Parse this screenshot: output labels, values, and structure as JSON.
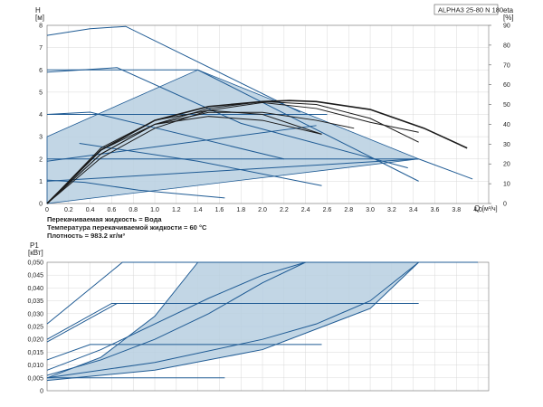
{
  "chart_data": [
    {
      "type": "line",
      "title": "ALPHA3 25-80 N 180",
      "y_axis_left": {
        "label": "H",
        "unit": "[м]",
        "range": [
          0,
          8
        ],
        "ticks": [
          "0",
          "1",
          "2",
          "3",
          "4",
          "5",
          "6",
          "7",
          "8"
        ]
      },
      "y_axis_right": {
        "label": "eta",
        "unit": "[%]",
        "range": [
          0,
          90
        ],
        "ticks": [
          "0",
          "10",
          "20",
          "30",
          "40",
          "50",
          "60",
          "70",
          "80",
          "90"
        ]
      },
      "x_axis": {
        "label": "Q",
        "unit": "[м³/ч]",
        "range": [
          0,
          4.1
        ],
        "ticks": [
          "0",
          "0.2",
          "0.4",
          "0.6",
          "0.8",
          "1.0",
          "1.2",
          "1.4",
          "1.6",
          "1.8",
          "2.0",
          "2.2",
          "2.4",
          "2.6",
          "2.8",
          "3.0",
          "3.2",
          "3.4",
          "3.6",
          "3.8",
          "4.0"
        ]
      },
      "grid": true,
      "notes": [
        "Перекачиваемая жидкость = Вода",
        "Температура перекачиваемой жидкости = 60 °C",
        "Плотность = 983.2 кг/м³"
      ],
      "proportional_region": {
        "x": [
          0,
          1.4,
          3.45,
          0
        ],
        "y": [
          3.0,
          6.0,
          2.0,
          0.0
        ]
      },
      "head_series": [
        {
          "x": [
            0,
            0.4,
            0.73,
            2.35
          ],
          "y": [
            7.55,
            7.85,
            7.95,
            4.1
          ]
        },
        {
          "x": [
            0,
            0.65,
            1.8,
            3.35
          ],
          "y": [
            5.9,
            6.1,
            3.6,
            1.6
          ]
        },
        {
          "x": [
            0,
            1.4
          ],
          "y": [
            6.0,
            6.0
          ]
        },
        {
          "x": [
            0,
            0.4,
            2.2
          ],
          "y": [
            4.0,
            4.1,
            2.0
          ]
        },
        {
          "x": [
            0,
            0.35,
            0.85,
            1.65
          ],
          "y": [
            1.05,
            0.95,
            0.6,
            0.25
          ]
        },
        {
          "x": [
            0,
            2.6
          ],
          "y": [
            4.0,
            4.0
          ]
        },
        {
          "x": [
            0,
            3.45
          ],
          "y": [
            1.0,
            2.0
          ]
        },
        {
          "x": [
            0,
            2.5
          ],
          "y": [
            1.9,
            3.5
          ]
        },
        {
          "x": [
            0,
            3.45
          ],
          "y": [
            2.0,
            2.0
          ]
        },
        {
          "x": [
            0.3,
            1.4,
            2.55
          ],
          "y": [
            2.7,
            1.9,
            0.8
          ]
        },
        {
          "x": [
            3.45,
            3.95
          ],
          "y": [
            2.0,
            1.1
          ]
        },
        {
          "x": [
            1.4,
            3.45
          ],
          "y": [
            6.0,
            1.0
          ]
        }
      ],
      "eta_series": [
        {
          "x": [
            0,
            0.5,
            1.0,
            1.5,
            2.0,
            2.25,
            2.5,
            3.0,
            3.5,
            3.9
          ],
          "y": [
            0,
            27,
            42,
            49,
            51.5,
            52,
            51.5,
            47.5,
            38,
            28
          ]
        },
        {
          "x": [
            0,
            0.5,
            1.0,
            1.5,
            2.0,
            2.5,
            3.0,
            3.45
          ],
          "y": [
            0,
            25,
            40,
            48,
            51.5,
            50,
            43,
            31
          ]
        },
        {
          "x": [
            0,
            0.5,
            1.0,
            1.5,
            2.0,
            2.5,
            3.0,
            3.45
          ],
          "y": [
            0,
            23,
            38,
            47,
            51,
            48,
            41,
            36
          ]
        },
        {
          "x": [
            0,
            0.5,
            1.0,
            1.5,
            2.0,
            2.5,
            2.85
          ],
          "y": [
            0,
            25,
            40,
            46,
            46,
            42,
            38
          ]
        },
        {
          "x": [
            0,
            0.5,
            1.0,
            1.5,
            2.0,
            2.55
          ],
          "y": [
            0,
            28,
            42,
            47,
            45,
            35
          ]
        },
        {
          "x": [
            0,
            0.5,
            1.0,
            1.5,
            2.0,
            2.55
          ],
          "y": [
            0,
            27,
            40,
            44,
            42,
            35
          ]
        }
      ]
    },
    {
      "type": "line",
      "y_axis": {
        "label": "P1",
        "unit": "[кВт]",
        "range": [
          0,
          0.05
        ],
        "ticks": [
          "0",
          "0,005",
          "0,010",
          "0,015",
          "0,020",
          "0,025",
          "0,030",
          "0,035",
          "0,040",
          "0,045",
          "0,050"
        ]
      },
      "x_range": [
        0,
        4.1
      ],
      "grid": true,
      "proportional_region": {
        "x": [
          0,
          1.4,
          3.45,
          3.45,
          1.4,
          0
        ],
        "y": [
          0.006,
          0.05,
          0.05,
          0.05,
          0.05,
          0.006
        ]
      },
      "power_series": [
        {
          "x": [
            0,
            0.7,
            0.75,
            4.0
          ],
          "y": [
            0.026,
            0.05,
            0.05,
            0.05
          ]
        },
        {
          "x": [
            0,
            0.6,
            3.45
          ],
          "y": [
            0.02,
            0.034,
            0.034
          ]
        },
        {
          "x": [
            0,
            0.65,
            2.55
          ],
          "y": [
            0.019,
            0.034,
            0.034
          ]
        },
        {
          "x": [
            0,
            0.4,
            2.55
          ],
          "y": [
            0.012,
            0.018,
            0.018
          ]
        },
        {
          "x": [
            0,
            0.35,
            1.65
          ],
          "y": [
            0.005,
            0.005,
            0.005
          ]
        },
        {
          "x": [
            0,
            0.5,
            1.0,
            1.4
          ],
          "y": [
            0.005,
            0.013,
            0.029,
            0.05
          ]
        },
        {
          "x": [
            0,
            0.5,
            1.0,
            1.5,
            2.0,
            2.4
          ],
          "y": [
            0.006,
            0.012,
            0.02,
            0.03,
            0.042,
            0.05
          ]
        },
        {
          "x": [
            0,
            0.5,
            1.0,
            1.5,
            2.0,
            2.4
          ],
          "y": [
            0.008,
            0.016,
            0.026,
            0.036,
            0.045,
            0.05
          ]
        },
        {
          "x": [
            0,
            1.0,
            2.0,
            2.5,
            3.0,
            3.45
          ],
          "y": [
            0.005,
            0.011,
            0.02,
            0.026,
            0.035,
            0.05
          ]
        },
        {
          "x": [
            0,
            1.0,
            2.0,
            3.0,
            3.45
          ],
          "y": [
            0.004,
            0.008,
            0.016,
            0.032,
            0.05
          ]
        }
      ]
    }
  ]
}
